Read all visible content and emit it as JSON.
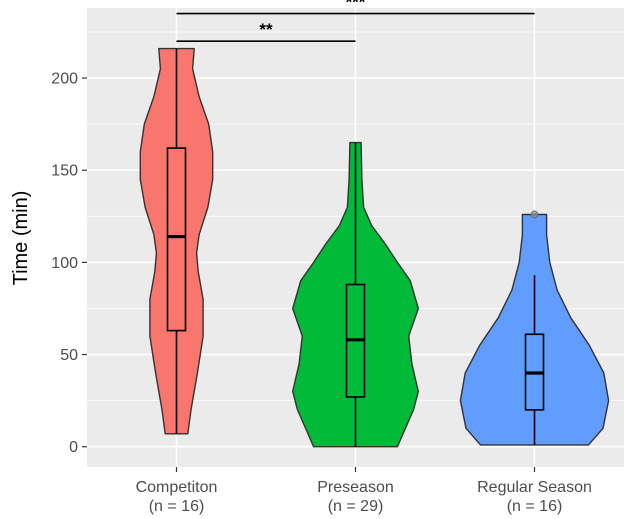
{
  "chart_data": {
    "type": "violin",
    "title": "",
    "xlabel": "",
    "ylabel": "Time (min)",
    "ylim": [
      -11,
      238
    ],
    "yticks": [
      0,
      50,
      100,
      150,
      200
    ],
    "grid": true,
    "legend": "none",
    "categories": [
      {
        "name": "Competiton",
        "n_label": "(n = 16)"
      },
      {
        "name": "Preseason",
        "n_label": "(n = 29)"
      },
      {
        "name": "Regular Season",
        "n_label": "(n = 16)"
      }
    ],
    "series": [
      {
        "category": "Competiton",
        "color": "#F8766D",
        "box": {
          "min": 7,
          "q1": 63,
          "median": 114,
          "q3": 162,
          "max": 216
        },
        "outliers": [],
        "violin": [
          [
            7,
            0.14
          ],
          [
            20,
            0.18
          ],
          [
            40,
            0.26
          ],
          [
            60,
            0.33
          ],
          [
            80,
            0.33
          ],
          [
            95,
            0.27
          ],
          [
            105,
            0.25
          ],
          [
            115,
            0.28
          ],
          [
            130,
            0.39
          ],
          [
            145,
            0.45
          ],
          [
            160,
            0.45
          ],
          [
            175,
            0.4
          ],
          [
            190,
            0.28
          ],
          [
            205,
            0.2
          ],
          [
            216,
            0.22
          ]
        ]
      },
      {
        "category": "Preseason",
        "color": "#00BA38",
        "box": {
          "min": 0,
          "q1": 27,
          "median": 58,
          "q3": 88,
          "max": 165
        },
        "outliers": [],
        "violin": [
          [
            0,
            0.52
          ],
          [
            10,
            0.62
          ],
          [
            20,
            0.72
          ],
          [
            30,
            0.78
          ],
          [
            45,
            0.7
          ],
          [
            60,
            0.66
          ],
          [
            75,
            0.78
          ],
          [
            90,
            0.68
          ],
          [
            100,
            0.52
          ],
          [
            110,
            0.37
          ],
          [
            120,
            0.2
          ],
          [
            130,
            0.1
          ],
          [
            145,
            0.08
          ],
          [
            165,
            0.07
          ]
        ]
      },
      {
        "category": "Regular Season",
        "color": "#619CFF",
        "box": {
          "min": 1,
          "q1": 20,
          "median": 40,
          "q3": 61,
          "max": 93
        },
        "outliers": [
          126
        ],
        "violin": [
          [
            1,
            0.67
          ],
          [
            10,
            0.85
          ],
          [
            25,
            0.92
          ],
          [
            40,
            0.86
          ],
          [
            55,
            0.68
          ],
          [
            70,
            0.45
          ],
          [
            85,
            0.28
          ],
          [
            100,
            0.19
          ],
          [
            115,
            0.15
          ],
          [
            126,
            0.15
          ]
        ]
      }
    ],
    "significance": [
      {
        "from": 0,
        "to": 1,
        "y": 220,
        "label": "**"
      },
      {
        "from": 0,
        "to": 2,
        "y": 235,
        "label": "***"
      }
    ]
  }
}
